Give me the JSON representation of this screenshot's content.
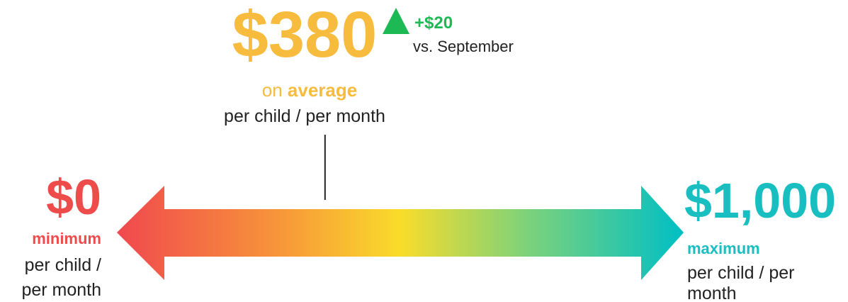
{
  "chart_data": {
    "type": "range",
    "min": {
      "value": 0,
      "label": "$0"
    },
    "max": {
      "value": 1000,
      "label": "$1,000"
    },
    "value": {
      "value": 380,
      "label": "$380"
    },
    "change": {
      "value": 20,
      "label": "+$20"
    },
    "change_note": "vs. September",
    "value_prefix": "on",
    "value_caption": "average",
    "value_unit": "per child / per month",
    "min_caption": "minimum",
    "min_unit": [
      "per child /",
      "per month"
    ],
    "max_caption": "maximum",
    "max_unit": [
      "per child / per",
      "month"
    ]
  }
}
